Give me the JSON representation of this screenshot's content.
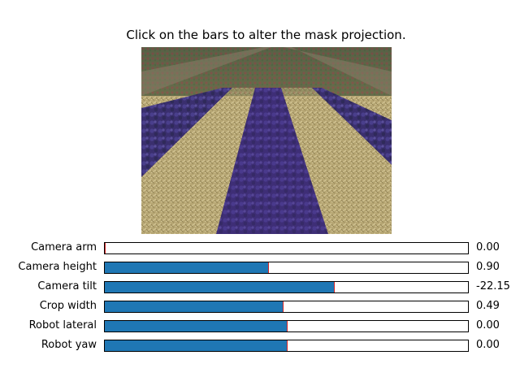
{
  "figure": {
    "title": "Click on the bars to alter the mask projection."
  },
  "image": {
    "description_icon": "crop-field-photo-icon"
  },
  "sliders": [
    {
      "label": "Camera arm",
      "value_text": "0.00",
      "fill_fraction": 0.0,
      "init_fraction": 0.0
    },
    {
      "label": "Camera height",
      "value_text": "0.90",
      "fill_fraction": 0.45,
      "init_fraction": 0.45
    },
    {
      "label": "Camera tilt",
      "value_text": "-22.15",
      "fill_fraction": 0.63,
      "init_fraction": 0.63
    },
    {
      "label": "Crop width",
      "value_text": "0.49",
      "fill_fraction": 0.49,
      "init_fraction": 0.49
    },
    {
      "label": "Robot lateral",
      "value_text": "0.00",
      "fill_fraction": 0.5,
      "init_fraction": 0.5
    },
    {
      "label": "Robot yaw",
      "value_text": "0.00",
      "fill_fraction": 0.5,
      "init_fraction": 0.5
    }
  ],
  "colors": {
    "fill": "#1f77b4",
    "init_marker": "#d62728",
    "mask_overlay": "#4b2d8f"
  }
}
